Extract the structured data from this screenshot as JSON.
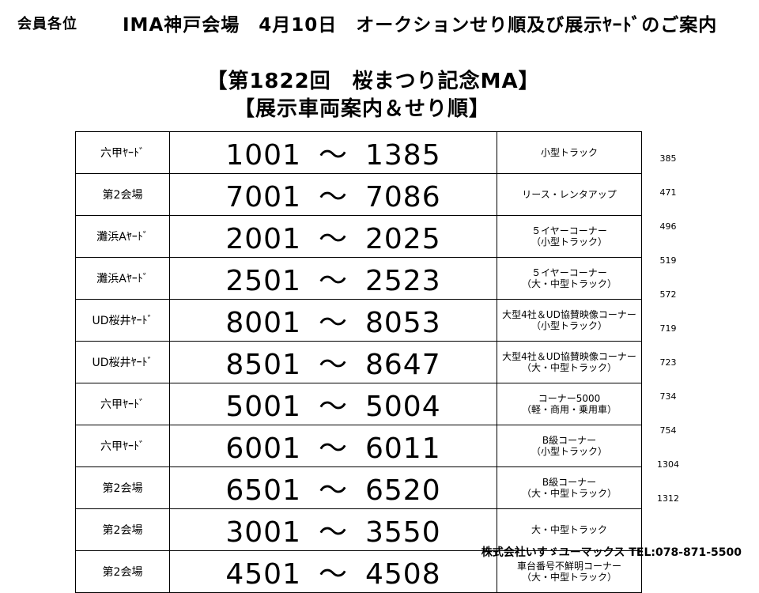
{
  "header": {
    "addressee": "会員各位",
    "title": "IMA神戸会場　4月10日　オークションせり順及び展示ﾔｰﾄﾞのご案内"
  },
  "titles": {
    "line1": "【第1822回　桜まつり記念MA】",
    "line2": "【展示車両案内＆せり順】"
  },
  "rows": [
    {
      "venue": "六甲ﾔｰﾄﾞ",
      "start": "1001",
      "sep": "～",
      "end": "1385",
      "cat1": "小型トラック",
      "cat2": "",
      "total": "385"
    },
    {
      "venue": "第2会場",
      "start": "7001",
      "sep": "～",
      "end": "7086",
      "cat1": "リース・レンタアップ",
      "cat2": "",
      "total": "471"
    },
    {
      "venue": "灘浜Aﾔｰﾄﾞ",
      "start": "2001",
      "sep": "～",
      "end": "2025",
      "cat1": "５イヤーコーナー",
      "cat2": "（小型トラック）",
      "total": "496"
    },
    {
      "venue": "灘浜Aﾔｰﾄﾞ",
      "start": "2501",
      "sep": "～",
      "end": "2523",
      "cat1": "５イヤーコーナー",
      "cat2": "（大・中型トラック）",
      "total": "519"
    },
    {
      "venue": "UD桜井ﾔｰﾄﾞ",
      "start": "8001",
      "sep": "～",
      "end": "8053",
      "cat1": "大型4社＆UD協賛映像コーナー",
      "cat2": "（小型トラック）",
      "total": "572"
    },
    {
      "venue": "UD桜井ﾔｰﾄﾞ",
      "start": "8501",
      "sep": "～",
      "end": "8647",
      "cat1": "大型4社＆UD協賛映像コーナー",
      "cat2": "（大・中型トラック）",
      "total": "719"
    },
    {
      "venue": "六甲ﾔｰﾄﾞ",
      "start": "5001",
      "sep": "～",
      "end": "5004",
      "cat1": "コーナー5000",
      "cat2": "（軽・商用・乗用車）",
      "total": "723"
    },
    {
      "venue": "六甲ﾔｰﾄﾞ",
      "start": "6001",
      "sep": "～",
      "end": "6011",
      "cat1": "B級コーナー",
      "cat2": "（小型トラック）",
      "total": "734"
    },
    {
      "venue": "第2会場",
      "start": "6501",
      "sep": "～",
      "end": "6520",
      "cat1": "B級コーナー",
      "cat2": "（大・中型トラック）",
      "total": "754"
    },
    {
      "venue": "第2会場",
      "start": "3001",
      "sep": "～",
      "end": "3550",
      "cat1": "大・中型トラック",
      "cat2": "",
      "total": "1304"
    },
    {
      "venue": "第2会場",
      "start": "4501",
      "sep": "～",
      "end": "4508",
      "cat1": "車台番号不鮮明コーナー",
      "cat2": "（大・中型トラック）",
      "total": "1312"
    }
  ],
  "footer": {
    "company": "株式会社いすゞユーマックス",
    "tel": "TEL:078-871-5500"
  }
}
